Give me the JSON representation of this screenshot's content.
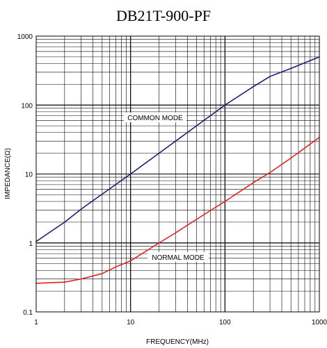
{
  "chart_data": {
    "type": "line",
    "title": "DB21T-900-PF",
    "xlabel": "FREQUENCY(MHz)",
    "ylabel": "IMPEDANCE(Ω)",
    "xscale": "log",
    "yscale": "log",
    "xlim": [
      1,
      1000
    ],
    "ylim": [
      0.1,
      1000
    ],
    "x_ticks": [
      "1",
      "10",
      "100",
      "1000"
    ],
    "y_ticks": [
      "0.1",
      "1",
      "10",
      "100",
      "1000"
    ],
    "grid": true,
    "series": [
      {
        "name": "COMMON MODE",
        "color": "#1a1a7a",
        "x": [
          1,
          2,
          3,
          5,
          10,
          20,
          30,
          50,
          100,
          200,
          300,
          500,
          1000
        ],
        "y": [
          1.05,
          2.0,
          3.1,
          5.1,
          10,
          20,
          30,
          50,
          100,
          185,
          260,
          340,
          500
        ]
      },
      {
        "name": "NORMAL MODE",
        "color": "#e02020",
        "x": [
          1,
          2,
          3,
          5,
          7,
          10,
          20,
          30,
          50,
          100,
          200,
          300,
          500,
          1000
        ],
        "y": [
          0.26,
          0.27,
          0.3,
          0.36,
          0.45,
          0.55,
          1.0,
          1.4,
          2.2,
          4.0,
          7.5,
          10.5,
          17,
          34
        ]
      }
    ],
    "annotations": [
      "COMMON MODE",
      "NORMAL MODE"
    ]
  }
}
